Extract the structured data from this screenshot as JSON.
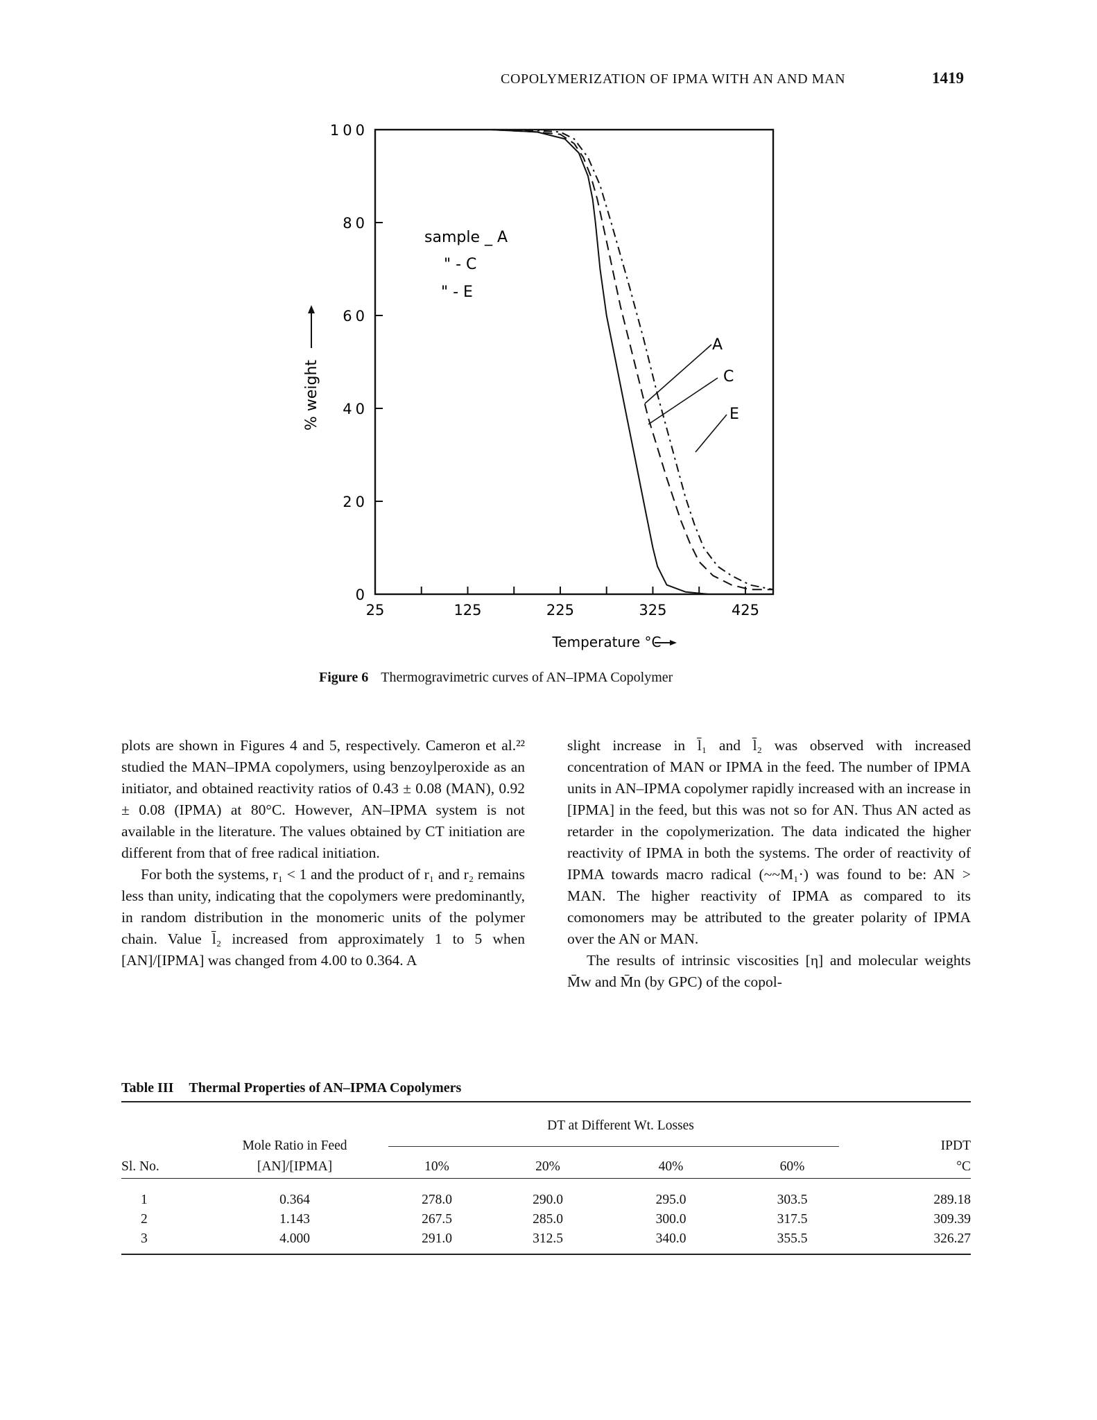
{
  "header": {
    "running_title": "COPOLYMERIZATION OF IPMA WITH AN AND MAN",
    "page_number": "1419"
  },
  "figure": {
    "label": "Figure 6",
    "caption": "Thermogravimetric curves of AN–IPMA Copolymer",
    "y_axis_label": "% weight",
    "x_axis_label": "Temperature °C",
    "legend": [
      "sample _ A",
      "\" - C",
      "\" - E"
    ],
    "curve_labels": [
      "A",
      "C",
      "E"
    ]
  },
  "chart_data": {
    "type": "line",
    "xlabel": "Temperature °C",
    "ylabel": "% weight",
    "xlim": [
      25,
      455
    ],
    "ylim": [
      0,
      100
    ],
    "xticks": [
      25,
      125,
      225,
      325,
      425
    ],
    "yticks": [
      0,
      20,
      40,
      60,
      80,
      100
    ],
    "grid": false,
    "legend_position": "upper-left",
    "series": [
      {
        "name": "A",
        "style": "solid",
        "x": [
          25,
          150,
          200,
          230,
          245,
          255,
          260,
          263,
          268,
          275,
          285,
          295,
          305,
          315,
          320,
          325,
          330,
          340,
          360,
          385,
          405,
          455
        ],
        "y": [
          100,
          100,
          99.5,
          98,
          95,
          90,
          85,
          80,
          70,
          60,
          50,
          40,
          30,
          20,
          15,
          10,
          6,
          2,
          0.5,
          0,
          0,
          0
        ]
      },
      {
        "name": "C",
        "style": "long-dash",
        "x": [
          25,
          150,
          200,
          225,
          240,
          250,
          258,
          265,
          275,
          290,
          305,
          320,
          340,
          355,
          365,
          375,
          390,
          410,
          430,
          455
        ],
        "y": [
          100,
          100,
          99.5,
          99,
          97,
          94,
          90,
          85,
          76,
          62,
          50,
          38,
          25,
          16,
          11,
          7,
          4,
          2,
          1,
          1
        ]
      },
      {
        "name": "E",
        "style": "dash-dot",
        "x": [
          25,
          150,
          200,
          225,
          240,
          255,
          268,
          280,
          300,
          315,
          330,
          345,
          360,
          370,
          380,
          395,
          410,
          430,
          455
        ],
        "y": [
          100,
          100,
          99.8,
          99.5,
          98,
          94,
          88,
          80,
          66,
          55,
          43,
          32,
          21,
          15,
          10,
          6,
          4,
          2,
          1
        ]
      }
    ]
  },
  "body": {
    "left_col": [
      "plots are shown in Figures 4 and 5, respectively. Cameron et al.²² studied the MAN–IPMA copolymers, using benzoylperoxide as an initiator, and obtained reactivity ratios of 0.43 ± 0.08 (MAN), 0.92 ± 0.08 (IPMA) at 80°C. However, AN–IPMA system is not available in the literature. The values obtained by CT initiation are different from that of free radical initiation.",
      "For both the systems, r₁ < 1 and the product of r₁ and r₂ remains less than unity, indicating that the copolymers were predominantly, in random distribution in the monomeric units of the polymer chain. Value l̄₂ increased from approximately 1 to 5 when [AN]/[IPMA] was changed from 4.00 to 0.364. A"
    ],
    "right_col": [
      "slight increase in l̄₁ and l̄₂ was observed with increased concentration of MAN or IPMA in the feed. The number of IPMA units in AN–IPMA copolymer rapidly increased with an increase in [IPMA] in the feed, but this was not so for AN. Thus AN acted as retarder in the copolymerization. The data indicated the higher reactivity of IPMA in both the systems. The order of reactivity of IPMA towards macro radical (~~M₁·) was found to be: AN > MAN. The higher reactivity of IPMA as compared to its comonomers may be attributed to the greater polarity of IPMA over the AN or MAN.",
      "The results of intrinsic viscosities [η] and molecular weights M̄w and M̄n (by GPC) of the copol-"
    ]
  },
  "table": {
    "label": "Table III",
    "title": "Thermal Properties of AN–IPMA Copolymers",
    "group_header": "DT at Different Wt. Losses",
    "col_slno": "Sl. No.",
    "col_feed_1": "Mole Ratio in Feed",
    "col_feed_2": "[AN]/[IPMA]",
    "col_10": "10%",
    "col_20": "20%",
    "col_40": "40%",
    "col_60": "60%",
    "col_ipdt_1": "IPDT",
    "col_ipdt_2": "°C",
    "rows": [
      [
        "1",
        "0.364",
        "278.0",
        "290.0",
        "295.0",
        "303.5",
        "289.18"
      ],
      [
        "2",
        "1.143",
        "267.5",
        "285.0",
        "300.0",
        "317.5",
        "309.39"
      ],
      [
        "3",
        "4.000",
        "291.0",
        "312.5",
        "340.0",
        "355.5",
        "326.27"
      ]
    ]
  }
}
